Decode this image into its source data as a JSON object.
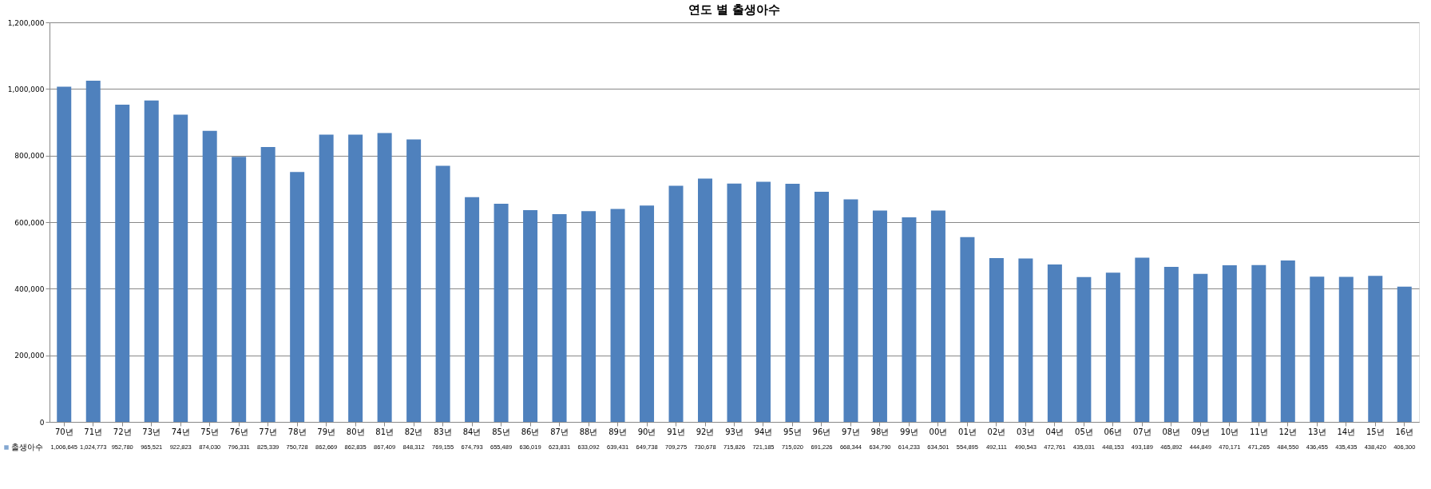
{
  "chart_data": {
    "type": "bar",
    "title": "연도 별 출생아수",
    "categories": [
      "70년",
      "71년",
      "72년",
      "73년",
      "74년",
      "75년",
      "76년",
      "77년",
      "78년",
      "79년",
      "80년",
      "81년",
      "82년",
      "83년",
      "84년",
      "85년",
      "86년",
      "87년",
      "88년",
      "89년",
      "90년",
      "91년",
      "92년",
      "93년",
      "94년",
      "95년",
      "96년",
      "97년",
      "98년",
      "99년",
      "00년",
      "01년",
      "02년",
      "03년",
      "04년",
      "05년",
      "06년",
      "07년",
      "08년",
      "09년",
      "10년",
      "11년",
      "12년",
      "13년",
      "14년",
      "15년",
      "16년"
    ],
    "series": [
      {
        "name": "출생아수",
        "color": "#4f81bd",
        "values": [
          1006645,
          1024773,
          952780,
          965521,
          922823,
          874030,
          796331,
          825339,
          750728,
          862669,
          862835,
          867409,
          848312,
          769155,
          674793,
          655489,
          636019,
          623831,
          633092,
          639431,
          649738,
          709275,
          730678,
          715826,
          721185,
          715020,
          691226,
          668344,
          634790,
          614233,
          634501,
          554895,
          492111,
          490543,
          472761,
          435031,
          448153,
          493189,
          465892,
          444849,
          470171,
          471265,
          484550,
          436455,
          435435,
          438420,
          406300
        ],
        "value_labels": [
          "1,006,645",
          "1,024,773",
          "952,780",
          "965,521",
          "922,823",
          "874,030",
          "796,331",
          "825,339",
          "750,728",
          "862,669",
          "862,835",
          "867,409",
          "848,312",
          "769,155",
          "674,793",
          "655,489",
          "636,019",
          "623,831",
          "633,092",
          "639,431",
          "649,738",
          "709,275",
          "730,678",
          "715,826",
          "721,185",
          "715,020",
          "691,226",
          "668,344",
          "634,790",
          "614,233",
          "634,501",
          "554,895",
          "492,111",
          "490,543",
          "472,761",
          "435,031",
          "448,153",
          "493,189",
          "465,892",
          "444,849",
          "470,171",
          "471,265",
          "484,550",
          "436,455",
          "435,435",
          "438,420",
          "406,300"
        ]
      }
    ],
    "ylim": [
      0,
      1200000
    ],
    "yticks": [
      0,
      {
        "value": 200000,
        "label": "200,000"
      },
      {
        "value": 400000,
        "label": "400,000"
      },
      {
        "value": 600000,
        "label": "600,000"
      },
      {
        "value": 800000,
        "label": "800,000"
      },
      {
        "value": 1000000,
        "label": "1,000,000"
      },
      {
        "value": 1200000,
        "label": "1,200,000"
      }
    ],
    "grid": "y",
    "legend": "bottom left"
  }
}
